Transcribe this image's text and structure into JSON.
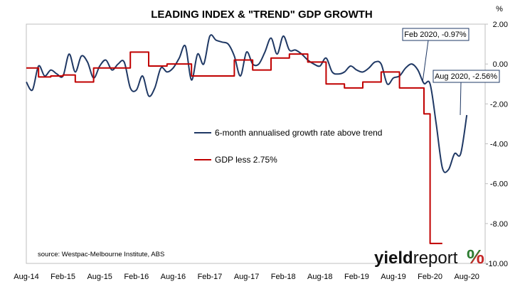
{
  "chart_data": {
    "type": "line",
    "title": "LEADING INDEX & \"TREND\" GDP GROWTH",
    "y_unit_label": "%",
    "ylim": [
      -10,
      2
    ],
    "y_ticks": [
      "2.00",
      "0.00",
      "-2.00",
      "-4.00",
      "-6.00",
      "-8.00",
      "-10.00"
    ],
    "y_tick_values": [
      2,
      0,
      -2,
      -4,
      -6,
      -8,
      -10
    ],
    "x_tick_labels": [
      "Aug-14",
      "Feb-15",
      "Aug-15",
      "Feb-16",
      "Aug-16",
      "Feb-17",
      "Aug-17",
      "Feb-18",
      "Aug-18",
      "Feb-19",
      "Aug-19",
      "Feb-20",
      "Aug-20"
    ],
    "x_tick_index": [
      0,
      6,
      12,
      18,
      24,
      30,
      36,
      42,
      48,
      54,
      60,
      66,
      72
    ],
    "xlim": [
      0,
      75
    ],
    "grid": false,
    "legend_placement": "center",
    "series": [
      {
        "name": "6-month annualised growth rate above trend",
        "color": "#1f3864",
        "values": [
          -0.9,
          -1.3,
          -0.1,
          -0.6,
          -0.3,
          -0.5,
          -0.6,
          0.5,
          -0.4,
          0.4,
          0.1,
          -0.7,
          -0.1,
          0.2,
          -0.3,
          0.0,
          0.1,
          -1.2,
          -1.3,
          -0.6,
          -1.6,
          -1.2,
          -0.2,
          -0.4,
          -0.2,
          0.3,
          0.9,
          -0.8,
          0.5,
          0.0,
          1.4,
          1.2,
          1.1,
          1.0,
          0.4,
          -0.6,
          0.6,
          0.0,
          0.0,
          0.6,
          1.3,
          0.5,
          1.4,
          0.7,
          0.7,
          0.5,
          0.2,
          0.0,
          -0.1,
          0.3,
          -0.4,
          -0.5,
          -0.4,
          -0.1,
          -0.3,
          -0.4,
          -0.2,
          0.1,
          0.0,
          -1.0,
          -0.7,
          -0.6,
          -0.2,
          0.0,
          -0.3,
          -0.97,
          -1.0,
          -3.0,
          -5.2,
          -5.3,
          -4.5,
          -4.5,
          -2.56
        ]
      },
      {
        "name": "GDP less 2.75%",
        "color": "#c00000",
        "values": [
          -0.2,
          -0.2,
          -0.65,
          -0.65,
          -0.6,
          -0.6,
          -0.55,
          -0.55,
          -0.9,
          -0.9,
          -0.9,
          -0.2,
          -0.2,
          -0.2,
          -0.2,
          -0.2,
          -0.2,
          0.6,
          0.6,
          0.6,
          -0.1,
          -0.1,
          -0.1,
          0.0,
          0.0,
          0.0,
          0.0,
          -0.6,
          -0.6,
          -0.6,
          -0.6,
          -0.6,
          -0.6,
          -0.6,
          0.2,
          0.2,
          0.2,
          -0.3,
          -0.3,
          -0.3,
          0.3,
          0.3,
          0.3,
          0.5,
          0.5,
          0.5,
          0.1,
          0.1,
          0.1,
          -1.0,
          -1.0,
          -1.0,
          -1.2,
          -1.2,
          -1.2,
          -0.9,
          -0.9,
          -0.9,
          -0.4,
          -0.4,
          -0.4,
          -1.2,
          -1.2,
          -1.2,
          -1.2,
          -2.5,
          -9.0,
          -9.0,
          -9.0
        ]
      }
    ],
    "annotations": [
      {
        "text": "Feb 2020, -0.97%",
        "index": 65,
        "value": -0.97
      },
      {
        "text": "Aug 2020, -2.56%",
        "index": 72,
        "value": -2.56
      }
    ],
    "source": "source: Westpac-Melbourne Institute, ABS"
  },
  "logo": {
    "text_yield": "yield",
    "text_report": "report",
    "text_pct": "%",
    "pct_color_a": "#2e7d32",
    "pct_color_b": "#c62828"
  }
}
